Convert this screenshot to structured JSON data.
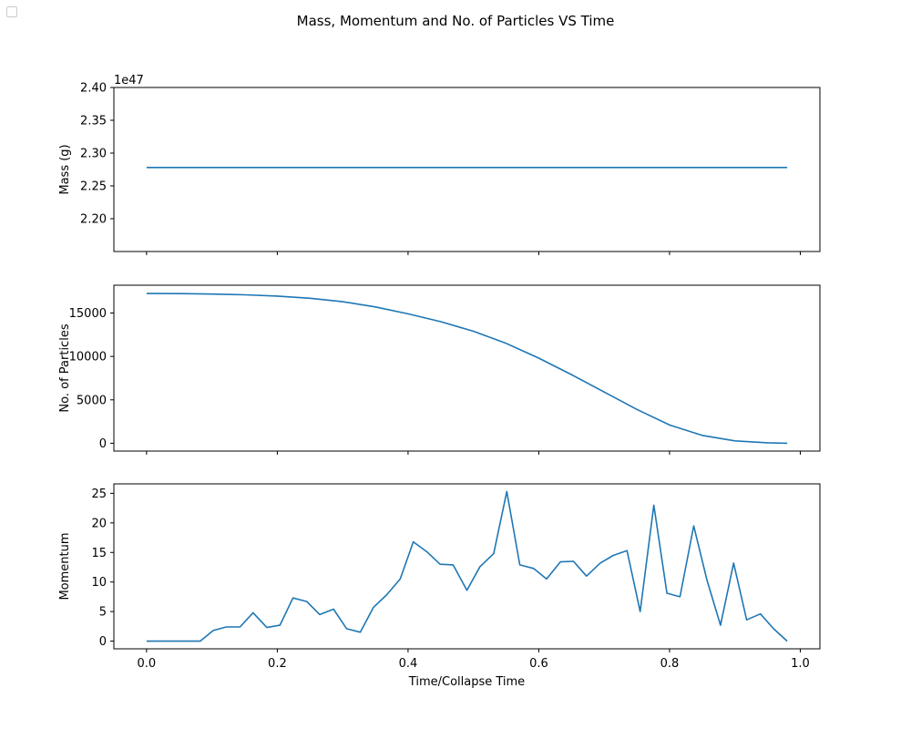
{
  "suptitle": "Mass, Momentum and No. of Particles VS Time",
  "xlabel": "Time/Collapse Time",
  "line_color": "#1f77b4",
  "chart_data": [
    {
      "type": "line",
      "name": "mass",
      "ylabel": "Mass (g)",
      "offset_text": "1e47",
      "xlim": [
        -0.05,
        1.03
      ],
      "ylim": [
        2.15,
        2.4
      ],
      "yticks": [
        2.2,
        2.25,
        2.3,
        2.35,
        2.4
      ],
      "ytick_labels": [
        "2.20",
        "2.25",
        "2.30",
        "2.35",
        "2.40"
      ],
      "x": [
        0.0,
        0.98
      ],
      "y": [
        2.278,
        2.278
      ]
    },
    {
      "type": "line",
      "name": "particles",
      "ylabel": "No. of Particles",
      "xlim": [
        -0.05,
        1.03
      ],
      "ylim": [
        -900,
        18200
      ],
      "yticks": [
        0,
        5000,
        10000,
        15000
      ],
      "ytick_labels": [
        "0",
        "5000",
        "10000",
        "15000"
      ],
      "x": [
        0.0,
        0.05,
        0.1,
        0.15,
        0.2,
        0.25,
        0.3,
        0.35,
        0.4,
        0.45,
        0.5,
        0.55,
        0.6,
        0.65,
        0.7,
        0.75,
        0.8,
        0.85,
        0.9,
        0.95,
        0.98
      ],
      "y": [
        17250,
        17230,
        17180,
        17100,
        16950,
        16700,
        16300,
        15700,
        14900,
        14000,
        12900,
        11500,
        9800,
        7900,
        5900,
        3900,
        2100,
        900,
        280,
        50,
        0
      ]
    },
    {
      "type": "line",
      "name": "momentum",
      "ylabel": "Momentum",
      "xlim": [
        -0.05,
        1.03
      ],
      "ylim": [
        -1.3,
        26.6
      ],
      "yticks": [
        0,
        5,
        10,
        15,
        20,
        25
      ],
      "ytick_labels": [
        "0",
        "5",
        "10",
        "15",
        "20",
        "25"
      ],
      "xticks": [
        0.0,
        0.2,
        0.4,
        0.6,
        0.8,
        1.0
      ],
      "xtick_labels": [
        "0.0",
        "0.2",
        "0.4",
        "0.6",
        "0.8",
        "1.0"
      ],
      "x": [
        0.0,
        0.02,
        0.04,
        0.061,
        0.082,
        0.102,
        0.122,
        0.143,
        0.163,
        0.184,
        0.204,
        0.224,
        0.245,
        0.265,
        0.286,
        0.306,
        0.327,
        0.347,
        0.367,
        0.388,
        0.408,
        0.429,
        0.449,
        0.469,
        0.49,
        0.51,
        0.531,
        0.551,
        0.571,
        0.592,
        0.612,
        0.633,
        0.653,
        0.673,
        0.694,
        0.714,
        0.735,
        0.755,
        0.776,
        0.796,
        0.816,
        0.837,
        0.857,
        0.878,
        0.898,
        0.918,
        0.939,
        0.959,
        0.98
      ],
      "y": [
        0,
        0,
        0,
        0,
        0,
        1.8,
        2.4,
        2.4,
        4.8,
        2.3,
        2.7,
        7.3,
        6.7,
        4.5,
        5.4,
        2.1,
        1.5,
        5.7,
        7.8,
        10.5,
        16.8,
        15.1,
        13.0,
        12.9,
        8.6,
        12.6,
        14.8,
        25.3,
        12.9,
        12.3,
        10.5,
        13.4,
        13.5,
        11.0,
        13.2,
        14.5,
        15.3,
        5.0,
        23.0,
        8.1,
        7.5,
        19.5,
        10.4,
        2.7,
        13.2,
        3.6,
        4.6,
        2.1,
        0.0
      ]
    }
  ]
}
